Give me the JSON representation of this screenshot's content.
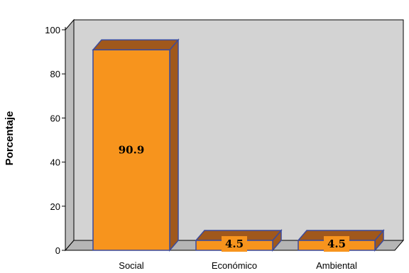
{
  "chart_data": {
    "type": "bar",
    "title": "",
    "xlabel": "",
    "ylabel": "Porcentaje",
    "categories": [
      "Social",
      "Económico",
      "Ambiental"
    ],
    "values": [
      90.9,
      4.5,
      4.5
    ],
    "data_labels": [
      "90.9",
      "4.5",
      "4.5"
    ],
    "ylim": [
      0,
      100
    ],
    "yticks": [
      0,
      20,
      40,
      60,
      80,
      100
    ],
    "grid": false,
    "legend": "none",
    "style": "3d",
    "colors": {
      "bar_front": "#F7941D",
      "bar_side": "#A0581C",
      "bar_top": "#A0581C",
      "bar_outline": "#3A4A9C",
      "plot_bg": "#D3D3D3",
      "floor": "#B5B5B5",
      "label_box": "#F7941D"
    }
  }
}
